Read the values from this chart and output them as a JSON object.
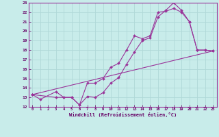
{
  "background_color": "#c8ecea",
  "grid_color": "#b0d8d8",
  "line_color": "#993399",
  "xlabel": "Windchill (Refroidissement éolien,°C)",
  "xlim": [
    -0.5,
    23.5
  ],
  "ylim": [
    12,
    23
  ],
  "yticks": [
    12,
    13,
    14,
    15,
    16,
    17,
    18,
    19,
    20,
    21,
    22,
    23
  ],
  "xticks": [
    0,
    1,
    2,
    3,
    4,
    5,
    6,
    7,
    8,
    9,
    10,
    11,
    12,
    13,
    14,
    15,
    16,
    17,
    18,
    19,
    20,
    21,
    22,
    23
  ],
  "series": [
    {
      "x": [
        0,
        1,
        3,
        4,
        5,
        6,
        7,
        8,
        9,
        10,
        11,
        12,
        13,
        14,
        15,
        16,
        17,
        18,
        19,
        20,
        21,
        22,
        23
      ],
      "y": [
        13.3,
        12.8,
        13.6,
        13.0,
        13.0,
        12.2,
        13.1,
        13.0,
        13.5,
        14.5,
        15.1,
        16.5,
        17.8,
        19.0,
        19.3,
        21.5,
        22.2,
        23.0,
        22.2,
        21.0,
        18.0,
        18.0,
        17.9
      ]
    },
    {
      "x": [
        0,
        3,
        4,
        5,
        6,
        7,
        8,
        9,
        10,
        11,
        12,
        13,
        14,
        15,
        16,
        17,
        18,
        19,
        20,
        21,
        22,
        23
      ],
      "y": [
        13.3,
        13.0,
        13.0,
        13.0,
        12.2,
        14.5,
        14.5,
        15.0,
        16.2,
        16.6,
        18.0,
        19.5,
        19.2,
        19.5,
        22.0,
        22.1,
        22.4,
        22.0,
        21.0,
        18.0,
        18.0,
        17.9
      ]
    },
    {
      "x": [
        0,
        23
      ],
      "y": [
        13.3,
        17.9
      ],
      "no_markers": true
    }
  ]
}
